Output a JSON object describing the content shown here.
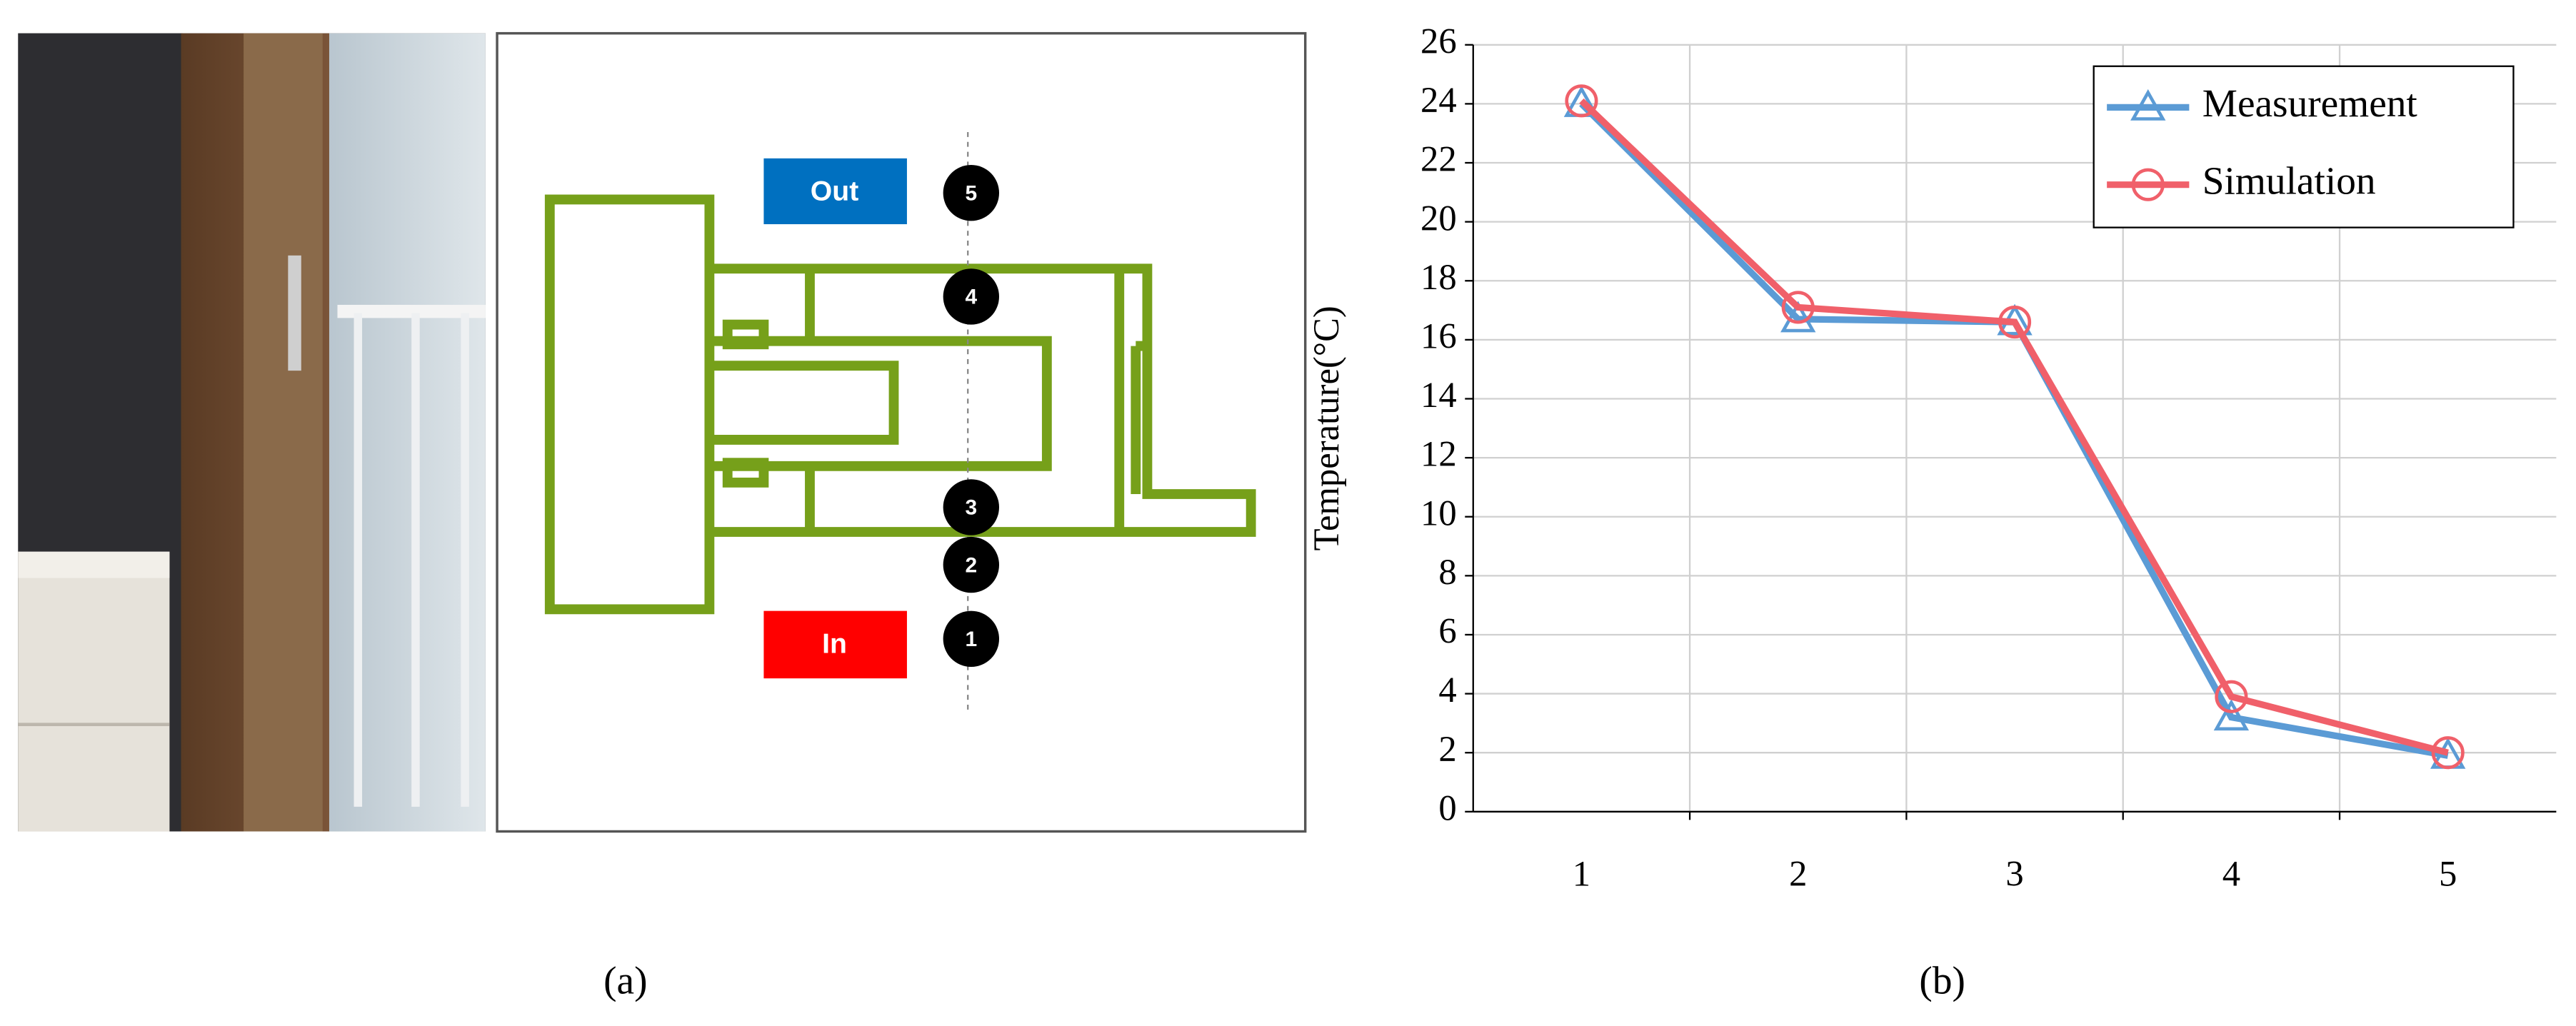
{
  "panel_labels": [
    "(a)",
    "(b)"
  ],
  "diagram": {
    "out_label": "Out",
    "in_label": "In",
    "points": [
      "5",
      "4",
      "3",
      "2",
      "1"
    ]
  },
  "chart_data": {
    "type": "line",
    "categories": [
      "1",
      "2",
      "3",
      "4",
      "5"
    ],
    "y_label": "Temperature(°C)",
    "series": [
      {
        "name": "Measurement",
        "color": "#5b9bd5",
        "marker": "triangle",
        "values": [
          24,
          16.7,
          16.6,
          3.2,
          1.9
        ]
      },
      {
        "name": "Simulation",
        "color": "#f0606a",
        "marker": "circle",
        "values": [
          24.1,
          17.1,
          16.6,
          3.9,
          2.0
        ]
      }
    ],
    "ylim": [
      0,
      26
    ],
    "yticks": [
      0,
      2,
      4,
      6,
      8,
      10,
      12,
      14,
      16,
      18,
      20,
      22,
      24,
      26
    ],
    "grid": true,
    "legend": "upper right"
  }
}
